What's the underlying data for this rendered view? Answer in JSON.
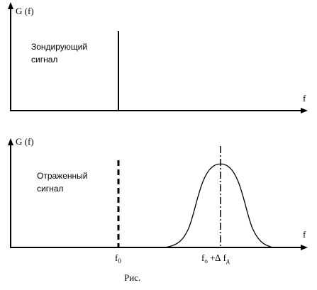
{
  "panels": [
    {
      "y_label": "G (f)",
      "x_label": "f",
      "annotation": [
        "Зондирующий",
        "сигнал"
      ]
    },
    {
      "y_label": "G (f)",
      "x_label": "f",
      "annotation": [
        "Отраженный",
        "сигнал"
      ],
      "marker_labels": [
        [
          {
            "text": "f"
          },
          {
            "text": "0",
            "sub": true
          }
        ],
        [
          {
            "text": "f"
          },
          {
            "text": "o",
            "sub": true
          },
          {
            "text": " +∆ f"
          },
          {
            "text": "д",
            "sub": true
          }
        ]
      ]
    }
  ],
  "caption": "Рис."
}
